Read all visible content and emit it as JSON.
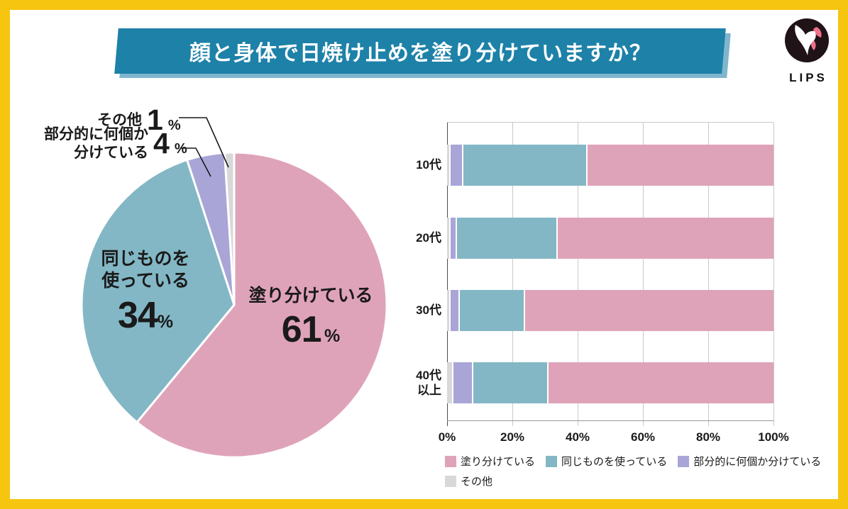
{
  "header": {
    "title": "顔と身体で日焼け止めを塗り分けていますか？",
    "logo": {
      "text": "LIPS"
    }
  },
  "percent_sign": "%",
  "colors": {
    "frame_yellow": "#F6C50F",
    "banner_teal": "#1D81A8",
    "banner_shadow_blue": "#7FB6CD",
    "separate_pink": "#DFA3B9",
    "same_teal": "#83B7C5",
    "partial_purple": "#A9A5D6",
    "other_gray": "#D8D8D8"
  },
  "chart_data": [
    {
      "type": "pie",
      "title": "顔と身体で日焼け止めを塗り分けていますか？",
      "unit": "%",
      "start_angle": "top",
      "direction": "clockwise",
      "slices": [
        {
          "label": "塗り分けている",
          "value": 61,
          "color": "#DFA3B9",
          "label_position": "inside"
        },
        {
          "label": "同じものを使っている",
          "label_lines": "同じものを\n使っている",
          "value": 34,
          "color": "#83B7C5",
          "label_position": "inside"
        },
        {
          "label": "部分的に何個か分けている",
          "label_lines": "部分的に何個か\n分けている",
          "value": 4,
          "color": "#A9A5D6",
          "label_position": "outside"
        },
        {
          "label": "その他",
          "value": 1,
          "color": "#D8D8D8",
          "label_position": "outside"
        }
      ]
    },
    {
      "type": "bar",
      "subtype": "horizontal-stacked-100pct",
      "categories": [
        "10代",
        "20代",
        "30代",
        "40代\n以上"
      ],
      "series": [
        {
          "name": "塗り分けている",
          "color": "#DFA3B9",
          "values": [
            57,
            66,
            76,
            69
          ]
        },
        {
          "name": "同じものを使っている",
          "color": "#83B7C5",
          "values": [
            38,
            31,
            20,
            23
          ]
        },
        {
          "name": "部分的に何個か分けている",
          "color": "#A9A5D6",
          "values": [
            4,
            2,
            3,
            6
          ]
        },
        {
          "name": "その他",
          "color": "#D8D8D8",
          "values": [
            1,
            1,
            1,
            2
          ]
        }
      ],
      "stack_order_left_to_right": [
        "その他",
        "部分的に何個か分けている",
        "同じものを使っている",
        "塗り分けている"
      ],
      "x_ticks": [
        "0%",
        "20%",
        "40%",
        "60%",
        "80%",
        "100%"
      ],
      "xlim": [
        0,
        100
      ],
      "grid": true,
      "legend_position": "bottom"
    }
  ]
}
